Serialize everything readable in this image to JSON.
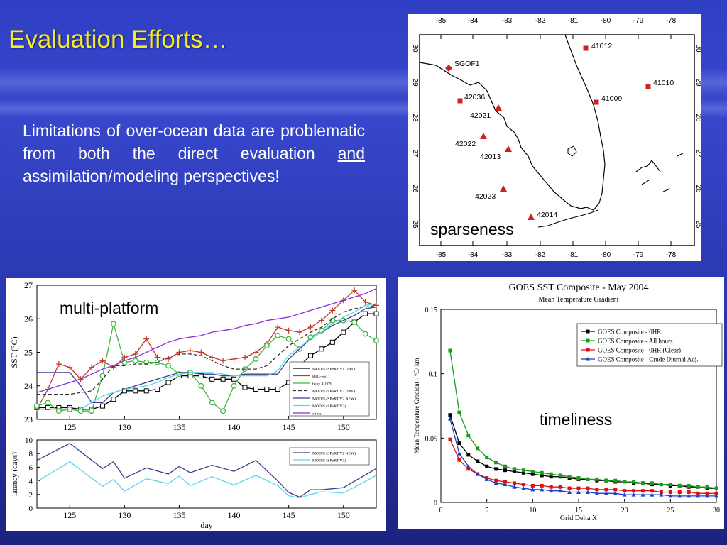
{
  "slide": {
    "title": "Evaluation Efforts…",
    "body_part1": "Limitations of over-ocean data are problematic from both the direct evaluation",
    "body_underlined": "and",
    "body_part2": "assimilation/modeling perspectives!"
  },
  "map": {
    "label": "sparseness",
    "lon_ticks": [
      "-85",
      "-84",
      "-83",
      "-82",
      "-81",
      "-80",
      "-79",
      "-78"
    ],
    "lat_ticks": [
      "30",
      "29",
      "28",
      "27",
      "26",
      "25"
    ],
    "stations": [
      {
        "name": "SGOF1",
        "marker": "diamond"
      },
      {
        "name": "41012",
        "marker": "square"
      },
      {
        "name": "42036",
        "marker": "square"
      },
      {
        "name": "41010",
        "marker": "square"
      },
      {
        "name": "41009",
        "marker": "square"
      },
      {
        "name": "42021",
        "marker": "triangle"
      },
      {
        "name": "42022",
        "marker": "triangle"
      },
      {
        "name": "42013",
        "marker": "triangle"
      },
      {
        "name": "42023",
        "marker": "triangle"
      },
      {
        "name": "42014",
        "marker": "triangle"
      }
    ],
    "marker_color": "#cc2222"
  },
  "chart_data": [
    {
      "type": "line",
      "annotation": "multi-platform",
      "ylabel": "SST (°C)",
      "ylim": [
        23,
        27
      ],
      "xlim": [
        122,
        153
      ],
      "x_ticks": [
        "125",
        "130",
        "135",
        "140",
        "145",
        "150"
      ],
      "y_ticks": [
        "23",
        "24",
        "25",
        "26",
        "27"
      ],
      "x": [
        122,
        123,
        124,
        125,
        126,
        127,
        128,
        129,
        130,
        131,
        132,
        133,
        134,
        135,
        136,
        137,
        138,
        139,
        140,
        141,
        142,
        143,
        144,
        145,
        146,
        147,
        148,
        149,
        150,
        151,
        152,
        153
      ],
      "series": [
        {
          "name": "MODIS (SPoRT V1 DAY)",
          "color": "#000000",
          "values": [
            23.35,
            23.35,
            23.35,
            23.35,
            23.3,
            23.3,
            23.4,
            23.6,
            23.85,
            23.85,
            23.85,
            23.9,
            24.1,
            24.3,
            24.3,
            24.3,
            24.2,
            24.2,
            24.2,
            23.95,
            23.9,
            23.9,
            23.9,
            24.1,
            24.6,
            24.9,
            25.1,
            25.3,
            25.6,
            25.9,
            26.15,
            26.15
          ]
        },
        {
          "name": "RTG-SST",
          "color": "#c0392b",
          "values": [
            23.3,
            23.9,
            24.65,
            24.55,
            24.2,
            24.55,
            24.75,
            24.55,
            24.85,
            24.95,
            25.4,
            24.85,
            24.8,
            25.0,
            25.05,
            25.0,
            24.85,
            24.75,
            24.8,
            24.85,
            25.0,
            25.25,
            25.75,
            25.65,
            25.6,
            25.75,
            25.95,
            26.25,
            26.55,
            26.85,
            26.5,
            26.4
          ]
        },
        {
          "name": "buoy 41009",
          "color": "#3db73d",
          "values": [
            23.4,
            23.5,
            23.25,
            23.3,
            23.25,
            23.25,
            24.3,
            25.85,
            24.7,
            24.75,
            24.7,
            24.7,
            24.6,
            24.35,
            24.4,
            24.0,
            23.5,
            23.25,
            24.0,
            24.5,
            24.8,
            25.2,
            25.5,
            25.4,
            25.1,
            25.45,
            25.65,
            25.95,
            25.95,
            25.9,
            25.55,
            25.35
          ]
        },
        {
          "name": "MODIS (SPoRT V2 DAY)",
          "color": "#333333",
          "dash": "5,3",
          "values": [
            23.75,
            23.75,
            23.75,
            23.75,
            23.8,
            23.85,
            24.2,
            24.6,
            24.6,
            24.65,
            24.65,
            24.7,
            24.85,
            24.95,
            24.95,
            24.9,
            24.75,
            24.6,
            24.5,
            24.5,
            24.5,
            24.6,
            24.9,
            25.2,
            25.4,
            25.6,
            25.75,
            26.0,
            26.2,
            26.3,
            26.35,
            26.4
          ]
        },
        {
          "name": "MODIS (SPoRT V2 NEW)",
          "color": "#3c3c8c",
          "values": [
            24.4,
            24.4,
            24.4,
            24.4,
            24.0,
            23.5,
            23.5,
            23.8,
            23.9,
            24.0,
            24.1,
            24.2,
            24.3,
            24.4,
            24.4,
            24.35,
            24.35,
            24.3,
            24.3,
            24.35,
            24.35,
            24.35,
            24.35,
            24.8,
            25.1,
            25.4,
            25.6,
            25.8,
            25.95,
            26.1,
            26.3,
            26.35
          ]
        },
        {
          "name": "MODIS (SPoRT V3)",
          "color": "#5fd6e6",
          "values": [
            23.3,
            23.3,
            23.3,
            23.3,
            23.3,
            23.5,
            23.7,
            23.8,
            23.9,
            23.95,
            24.0,
            24.1,
            24.25,
            24.35,
            24.4,
            24.4,
            24.4,
            24.35,
            24.3,
            24.3,
            24.3,
            24.3,
            24.45,
            24.9,
            25.15,
            25.4,
            25.6,
            25.85,
            26.05,
            26.2,
            26.4,
            26.45
          ]
        },
        {
          "name": "clima",
          "color": "#8a2be2",
          "values": [
            23.8,
            23.9,
            24.0,
            24.1,
            24.2,
            24.35,
            24.5,
            24.6,
            24.75,
            24.85,
            25.0,
            25.15,
            25.3,
            25.4,
            25.45,
            25.5,
            25.6,
            25.65,
            25.7,
            25.8,
            25.85,
            25.95,
            26.0,
            26.05,
            26.15,
            26.25,
            26.35,
            26.45,
            26.55,
            26.65,
            26.75,
            26.9
          ]
        }
      ]
    },
    {
      "type": "line",
      "xlabel": "day",
      "ylabel": "latency (days)",
      "ylim": [
        0,
        10
      ],
      "xlim": [
        122,
        153
      ],
      "x_ticks": [
        "125",
        "130",
        "135",
        "140",
        "145",
        "150"
      ],
      "y_ticks": [
        "0",
        "2",
        "4",
        "6",
        "8",
        "10"
      ],
      "x": [
        122,
        125,
        128,
        129,
        130,
        132,
        134,
        135,
        136,
        138,
        140,
        142,
        144,
        145,
        146,
        147,
        148,
        150,
        153
      ],
      "series": [
        {
          "name": "MODIS (SPoRT V2 NEW)",
          "color": "#3c3c8c",
          "values": [
            7.0,
            9.5,
            5.8,
            6.8,
            4.4,
            5.9,
            5.0,
            6.1,
            5.2,
            6.3,
            5.4,
            7.0,
            4.0,
            2.3,
            1.6,
            2.7,
            2.7,
            3.0,
            5.8
          ]
        },
        {
          "name": "MODIS (SPoRT V3)",
          "color": "#5fd6e6",
          "values": [
            3.9,
            6.8,
            3.2,
            4.2,
            2.5,
            4.3,
            3.6,
            4.7,
            3.3,
            4.6,
            3.4,
            4.8,
            3.3,
            1.8,
            1.5,
            2.0,
            2.4,
            2.2,
            4.8
          ]
        }
      ]
    },
    {
      "type": "line",
      "title": "GOES SST Composite - May 2004",
      "subtitle": "Mean Temperature Gradient",
      "annotation": "timeliness",
      "xlabel": "Grid Delta X",
      "ylabel": "Mean Temperature Gradient - °C/ km",
      "xlim": [
        0,
        30
      ],
      "ylim": [
        0,
        0.15
      ],
      "x_ticks": [
        "0",
        "5",
        "10",
        "15",
        "20",
        "25",
        "30"
      ],
      "y_ticks": [
        "0",
        "0.05",
        "0.1",
        "0.15"
      ],
      "x": [
        1,
        2,
        3,
        4,
        5,
        6,
        7,
        8,
        9,
        10,
        11,
        12,
        13,
        14,
        15,
        16,
        17,
        18,
        19,
        20,
        21,
        22,
        23,
        24,
        25,
        26,
        27,
        28,
        29,
        30
      ],
      "series": [
        {
          "name": "GOES Composite - 0HR",
          "color": "#000000",
          "marker": "square",
          "values": [
            0.068,
            0.046,
            0.037,
            0.032,
            0.028,
            0.026,
            0.025,
            0.024,
            0.023,
            0.022,
            0.021,
            0.02,
            0.02,
            0.019,
            0.018,
            0.018,
            0.017,
            0.017,
            0.016,
            0.016,
            0.015,
            0.015,
            0.014,
            0.014,
            0.013,
            0.013,
            0.012,
            0.012,
            0.011,
            0.011
          ]
        },
        {
          "name": "GOES Composite - All hours",
          "color": "#1a9c1a",
          "marker": "square",
          "values": [
            0.118,
            0.07,
            0.052,
            0.042,
            0.035,
            0.031,
            0.028,
            0.026,
            0.025,
            0.024,
            0.023,
            0.022,
            0.021,
            0.02,
            0.019,
            0.018,
            0.018,
            0.017,
            0.017,
            0.016,
            0.016,
            0.015,
            0.015,
            0.014,
            0.014,
            0.013,
            0.013,
            0.012,
            0.012,
            0.011
          ]
        },
        {
          "name": "GOES Composite  - 0HR (Clear)",
          "color": "#dd1111",
          "marker": "square",
          "values": [
            0.049,
            0.033,
            0.026,
            0.022,
            0.019,
            0.017,
            0.016,
            0.015,
            0.014,
            0.013,
            0.013,
            0.012,
            0.012,
            0.011,
            0.011,
            0.011,
            0.01,
            0.01,
            0.01,
            0.009,
            0.009,
            0.009,
            0.009,
            0.008,
            0.008,
            0.008,
            0.008,
            0.007,
            0.007,
            0.007
          ]
        },
        {
          "name": "GOES Composite - Crude Diurnal Adj.",
          "color": "#1a3ccc",
          "marker": "triangle",
          "values": [
            0.065,
            0.038,
            0.028,
            0.022,
            0.018,
            0.015,
            0.014,
            0.012,
            0.011,
            0.01,
            0.01,
            0.009,
            0.009,
            0.008,
            0.008,
            0.008,
            0.007,
            0.007,
            0.007,
            0.006,
            0.006,
            0.006,
            0.006,
            0.006,
            0.005,
            0.005,
            0.005,
            0.005,
            0.005,
            0.005
          ]
        }
      ]
    }
  ]
}
